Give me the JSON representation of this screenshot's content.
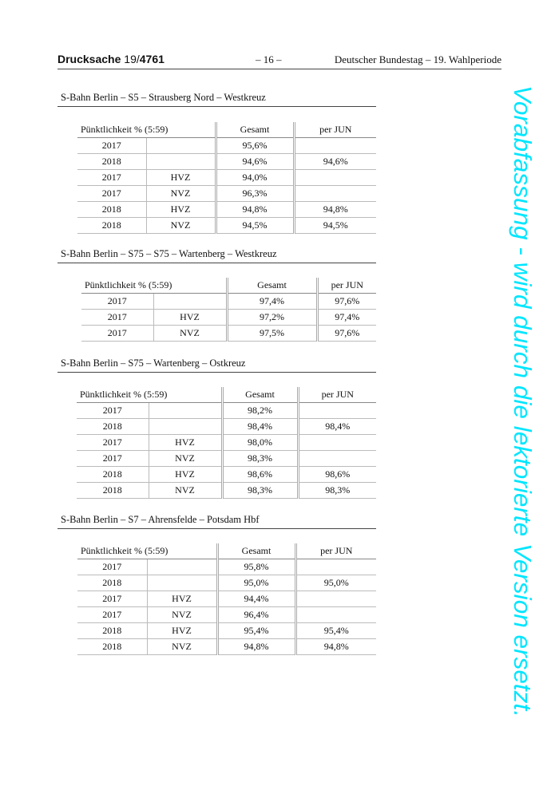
{
  "header": {
    "doc_label": "Drucksache",
    "doc_num_prefix": "19/",
    "doc_num": "4761",
    "page": "– 16 –",
    "right": "Deutscher Bundestag – 19. Wahlperiode"
  },
  "watermark": {
    "text": "Vorabfassung - wird durch die lektorierte Version ersetzt.",
    "color": "#00e6ff"
  },
  "sections": [
    {
      "title": "S-Bahn Berlin – S5 – Strausberg Nord – Westkreuz",
      "columns": [
        "Pünktlichkeit % (5:59)",
        "Gesamt",
        "per JUN"
      ],
      "rows": [
        [
          "2017",
          "",
          "95,6%",
          ""
        ],
        [
          "2018",
          "",
          "94,6%",
          "94,6%"
        ],
        [
          "2017",
          "HVZ",
          "94,0%",
          ""
        ],
        [
          "2017",
          "NVZ",
          "96,3%",
          ""
        ],
        [
          "2018",
          "HVZ",
          "94,8%",
          "94,8%"
        ],
        [
          "2018",
          "NVZ",
          "94,5%",
          "94,5%"
        ]
      ]
    },
    {
      "title": "S-Bahn Berlin – S75 – S75 – Wartenberg – Westkreuz",
      "columns": [
        "Pünktlichkeit % (5:59)",
        "Gesamt",
        "per JUN"
      ],
      "rows": [
        [
          "2017",
          "",
          "97,4%",
          "97,6%"
        ],
        [
          "2017",
          "HVZ",
          "97,2%",
          "97,4%"
        ],
        [
          "2017",
          "NVZ",
          "97,5%",
          "97,6%"
        ]
      ]
    },
    {
      "title": "S-Bahn Berlin – S75 – Wartenberg – Ostkreuz",
      "columns": [
        "Pünktlichkeit % (5:59)",
        "Gesamt",
        "per JUN"
      ],
      "rows": [
        [
          "2017",
          "",
          "98,2%",
          ""
        ],
        [
          "2018",
          "",
          "98,4%",
          "98,4%"
        ],
        [
          "2017",
          "HVZ",
          "98,0%",
          ""
        ],
        [
          "2017",
          "NVZ",
          "98,3%",
          ""
        ],
        [
          "2018",
          "HVZ",
          "98,6%",
          "98,6%"
        ],
        [
          "2018",
          "NVZ",
          "98,3%",
          "98,3%"
        ]
      ]
    },
    {
      "title": "S-Bahn Berlin – S7 – Ahrensfelde – Potsdam Hbf",
      "columns": [
        "Pünktlichkeit % (5:59)",
        "Gesamt",
        "per JUN"
      ],
      "rows": [
        [
          "2017",
          "",
          "95,8%",
          ""
        ],
        [
          "2018",
          "",
          "95,0%",
          "95,0%"
        ],
        [
          "2017",
          "HVZ",
          "94,4%",
          ""
        ],
        [
          "2017",
          "NVZ",
          "96,4%",
          ""
        ],
        [
          "2018",
          "HVZ",
          "95,4%",
          "95,4%"
        ],
        [
          "2018",
          "NVZ",
          "94,8%",
          "94,8%"
        ]
      ]
    }
  ]
}
